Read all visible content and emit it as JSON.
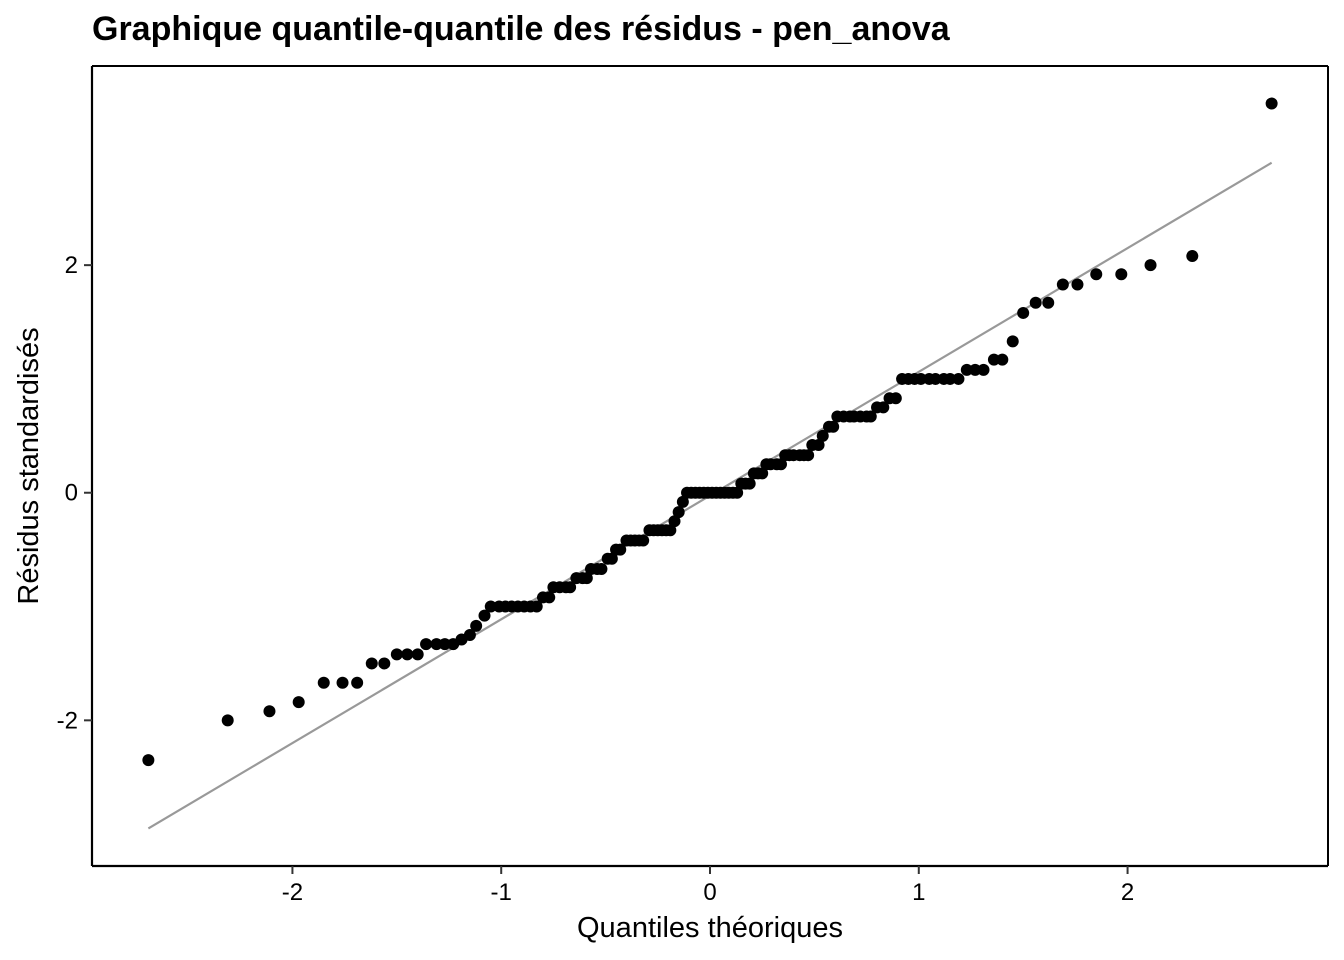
{
  "chart_data": {
    "type": "scatter",
    "title": "Graphique quantile-quantile des résidus - pen_anova",
    "xlabel": "Quantiles théoriques",
    "ylabel": "Résidus standardisés",
    "xlim": [
      -2.96,
      2.96
    ],
    "ylim": [
      -3.28,
      3.75
    ],
    "x_ticks": [
      -2,
      -1,
      0,
      1,
      2
    ],
    "x_tick_labels": [
      "-2",
      "-1",
      "0",
      "1",
      "2"
    ],
    "y_ticks": [
      -2,
      0,
      2
    ],
    "y_tick_labels": [
      "-2",
      "0",
      "2"
    ],
    "grid": false,
    "legend": "none",
    "point_color": "#000000",
    "line_color": "#999999",
    "reference_line": {
      "x": [
        -2.69,
        2.69
      ],
      "y": [
        -2.95,
        2.9
      ]
    },
    "points": [
      [
        -2.69,
        -2.35
      ],
      [
        -2.31,
        -2.0
      ],
      [
        -2.11,
        -1.92
      ],
      [
        -1.97,
        -1.84
      ],
      [
        -1.85,
        -1.67
      ],
      [
        -1.76,
        -1.67
      ],
      [
        -1.69,
        -1.67
      ],
      [
        -1.62,
        -1.5
      ],
      [
        -1.56,
        -1.5
      ],
      [
        -1.5,
        -1.42
      ],
      [
        -1.45,
        -1.42
      ],
      [
        -1.4,
        -1.42
      ],
      [
        -1.36,
        -1.33
      ],
      [
        -1.31,
        -1.33
      ],
      [
        -1.27,
        -1.33
      ],
      [
        -1.23,
        -1.33
      ],
      [
        -1.19,
        -1.29
      ],
      [
        -1.15,
        -1.25
      ],
      [
        -1.12,
        -1.17
      ],
      [
        -1.08,
        -1.08
      ],
      [
        -1.05,
        -1.0
      ],
      [
        -1.01,
        -1.0
      ],
      [
        -0.98,
        -1.0
      ],
      [
        -0.95,
        -1.0
      ],
      [
        -0.92,
        -1.0
      ],
      [
        -0.89,
        -1.0
      ],
      [
        -0.86,
        -1.0
      ],
      [
        -0.83,
        -1.0
      ],
      [
        -0.8,
        -0.92
      ],
      [
        -0.77,
        -0.92
      ],
      [
        -0.75,
        -0.83
      ],
      [
        -0.72,
        -0.83
      ],
      [
        -0.69,
        -0.83
      ],
      [
        -0.67,
        -0.83
      ],
      [
        -0.64,
        -0.75
      ],
      [
        -0.61,
        -0.75
      ],
      [
        -0.59,
        -0.75
      ],
      [
        -0.57,
        -0.67
      ],
      [
        -0.54,
        -0.67
      ],
      [
        -0.52,
        -0.67
      ],
      [
        -0.49,
        -0.58
      ],
      [
        -0.47,
        -0.58
      ],
      [
        -0.45,
        -0.5
      ],
      [
        -0.43,
        -0.5
      ],
      [
        -0.4,
        -0.42
      ],
      [
        -0.38,
        -0.42
      ],
      [
        -0.36,
        -0.42
      ],
      [
        -0.34,
        -0.42
      ],
      [
        -0.32,
        -0.42
      ],
      [
        -0.29,
        -0.33
      ],
      [
        -0.27,
        -0.33
      ],
      [
        -0.25,
        -0.33
      ],
      [
        -0.23,
        -0.33
      ],
      [
        -0.21,
        -0.33
      ],
      [
        -0.19,
        -0.33
      ],
      [
        -0.17,
        -0.25
      ],
      [
        -0.15,
        -0.17
      ],
      [
        -0.13,
        -0.08
      ],
      [
        -0.11,
        0.0
      ],
      [
        -0.09,
        0.0
      ],
      [
        -0.07,
        0.0
      ],
      [
        -0.05,
        0.0
      ],
      [
        -0.03,
        0.0
      ],
      [
        -0.01,
        0.0
      ],
      [
        0.01,
        0.0
      ],
      [
        0.03,
        0.0
      ],
      [
        0.05,
        0.0
      ],
      [
        0.07,
        0.0
      ],
      [
        0.09,
        0.0
      ],
      [
        0.11,
        0.0
      ],
      [
        0.13,
        0.0
      ],
      [
        0.15,
        0.08
      ],
      [
        0.17,
        0.08
      ],
      [
        0.19,
        0.08
      ],
      [
        0.21,
        0.17
      ],
      [
        0.23,
        0.17
      ],
      [
        0.25,
        0.17
      ],
      [
        0.27,
        0.25
      ],
      [
        0.29,
        0.25
      ],
      [
        0.32,
        0.25
      ],
      [
        0.34,
        0.25
      ],
      [
        0.36,
        0.33
      ],
      [
        0.38,
        0.33
      ],
      [
        0.4,
        0.33
      ],
      [
        0.43,
        0.33
      ],
      [
        0.45,
        0.33
      ],
      [
        0.47,
        0.33
      ],
      [
        0.49,
        0.42
      ],
      [
        0.52,
        0.42
      ],
      [
        0.54,
        0.5
      ],
      [
        0.57,
        0.58
      ],
      [
        0.59,
        0.58
      ],
      [
        0.61,
        0.67
      ],
      [
        0.64,
        0.67
      ],
      [
        0.67,
        0.67
      ],
      [
        0.69,
        0.67
      ],
      [
        0.72,
        0.67
      ],
      [
        0.75,
        0.67
      ],
      [
        0.77,
        0.67
      ],
      [
        0.8,
        0.75
      ],
      [
        0.83,
        0.75
      ],
      [
        0.86,
        0.83
      ],
      [
        0.89,
        0.83
      ],
      [
        0.92,
        1.0
      ],
      [
        0.95,
        1.0
      ],
      [
        0.98,
        1.0
      ],
      [
        1.01,
        1.0
      ],
      [
        1.05,
        1.0
      ],
      [
        1.08,
        1.0
      ],
      [
        1.12,
        1.0
      ],
      [
        1.15,
        1.0
      ],
      [
        1.19,
        1.0
      ],
      [
        1.23,
        1.08
      ],
      [
        1.27,
        1.08
      ],
      [
        1.31,
        1.08
      ],
      [
        1.36,
        1.17
      ],
      [
        1.4,
        1.17
      ],
      [
        1.45,
        1.33
      ],
      [
        1.5,
        1.58
      ],
      [
        1.56,
        1.67
      ],
      [
        1.62,
        1.67
      ],
      [
        1.69,
        1.83
      ],
      [
        1.76,
        1.83
      ],
      [
        1.85,
        1.92
      ],
      [
        1.97,
        1.92
      ],
      [
        2.11,
        2.0
      ],
      [
        2.31,
        2.08
      ],
      [
        2.69,
        3.42
      ]
    ]
  }
}
